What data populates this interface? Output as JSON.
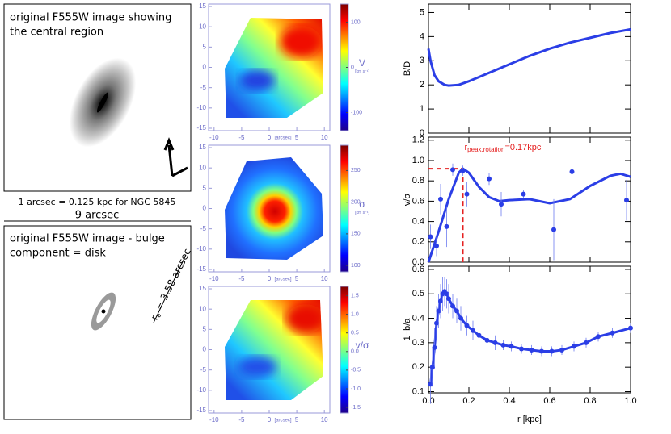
{
  "left_panel": {
    "top_box_lines": [
      "original F555W image showing",
      "the central region"
    ],
    "scale_text": "1 arcsec = 0.125 kpc for NGC 5845",
    "bar_label": "9 arcsec",
    "bottom_box_lines": [
      "original F555W image - bulge",
      "component = disk"
    ],
    "re_label": {
      "symbol": "r",
      "sub": "e",
      "text": " = 3.58 arcsec"
    }
  },
  "maps": {
    "xlim": [
      -11,
      11
    ],
    "ylim": [
      -15.6,
      15.6
    ],
    "xticks": [
      -10,
      -5,
      0,
      5,
      10
    ],
    "yticks": [
      -15,
      -10,
      -5,
      0,
      5,
      10,
      15
    ],
    "xlabel": "[arcsec]",
    "panels": [
      {
        "clabel": "V",
        "cunit": "[km s⁻¹]",
        "clim": [
          -140,
          140
        ],
        "cticks": [
          -100,
          0,
          100
        ]
      },
      {
        "clabel": "σ",
        "cunit": "[km s⁻¹]",
        "clim": [
          90,
          290
        ],
        "cticks": [
          100,
          150,
          200,
          250
        ]
      },
      {
        "clabel": "v/σ",
        "clim": [
          -1.65,
          1.75
        ],
        "cticks": [
          -1.5,
          {
            "value": -1,
            "label": "-1.0"
          },
          -0.5,
          {
            "value": 0,
            "label": "0.0"
          },
          0.5,
          {
            "value": 1,
            "label": "1.0"
          },
          1.5
        ]
      }
    ]
  },
  "chart_data": [
    {
      "type": "line",
      "ylabel": "B/D",
      "color": "#2b3ee6",
      "x": [
        0,
        0.01,
        0.02,
        0.03,
        0.05,
        0.08,
        0.1,
        0.15,
        0.2,
        0.3,
        0.4,
        0.5,
        0.6,
        0.7,
        0.8,
        0.9,
        1.0
      ],
      "values": [
        3.5,
        3.0,
        2.7,
        2.4,
        2.15,
        2.0,
        1.97,
        2.0,
        2.15,
        2.5,
        2.85,
        3.2,
        3.5,
        3.75,
        3.95,
        4.15,
        4.3
      ],
      "xlim": [
        0,
        1
      ],
      "ylim": [
        0,
        5.35
      ],
      "yticks": [
        0,
        1,
        2,
        3,
        4,
        5
      ]
    },
    {
      "type": "scatter",
      "ylabel": "v/σ",
      "color": "#2b3ee6",
      "x": [
        0.01,
        0.04,
        0.06,
        0.09,
        0.12,
        0.17,
        0.19,
        0.3,
        0.36,
        0.47,
        0.62,
        0.71,
        0.98
      ],
      "values": [
        0.25,
        0.16,
        0.62,
        0.35,
        0.91,
        0.9,
        0.67,
        0.82,
        0.57,
        0.67,
        0.32,
        0.89,
        0.61
      ],
      "errors": [
        0.12,
        0.1,
        0.15,
        0.2,
        0.06,
        0.05,
        0.12,
        0.06,
        0.12,
        0.04,
        0.3,
        0.26,
        0.2
      ],
      "fit": {
        "x": [
          0,
          0.05,
          0.1,
          0.15,
          0.17,
          0.2,
          0.25,
          0.3,
          0.35,
          0.4,
          0.5,
          0.6,
          0.7,
          0.8,
          0.9,
          0.95,
          1.0
        ],
        "values": [
          0,
          0.3,
          0.62,
          0.88,
          0.92,
          0.88,
          0.74,
          0.64,
          0.6,
          0.61,
          0.62,
          0.58,
          0.62,
          0.75,
          0.85,
          0.87,
          0.84
        ]
      },
      "peak": {
        "x": 0.17,
        "y": 0.92,
        "color": "#e52020"
      },
      "annotation": {
        "symbol": "r",
        "sub": "peak,rotation",
        "text": "=0.17kpc"
      },
      "xlim": [
        0,
        1
      ],
      "ylim": [
        0,
        1.23
      ],
      "yticks": [
        {
          "value": 0,
          "label": "0.0"
        },
        0.2,
        0.4,
        0.6,
        0.8,
        {
          "value": 1,
          "label": "1.0"
        },
        1.2
      ]
    },
    {
      "type": "line",
      "ylabel": "1−b/a",
      "color": "#2b3ee6",
      "markers": true,
      "x": [
        0.01,
        0.02,
        0.03,
        0.04,
        0.05,
        0.06,
        0.07,
        0.08,
        0.09,
        0.1,
        0.12,
        0.14,
        0.16,
        0.19,
        0.22,
        0.25,
        0.29,
        0.33,
        0.37,
        0.41,
        0.46,
        0.51,
        0.56,
        0.61,
        0.66,
        0.72,
        0.78,
        0.84,
        0.91,
        1.0
      ],
      "values": [
        0.13,
        0.2,
        0.28,
        0.38,
        0.43,
        0.47,
        0.5,
        0.51,
        0.5,
        0.48,
        0.45,
        0.43,
        0.4,
        0.37,
        0.35,
        0.33,
        0.31,
        0.3,
        0.29,
        0.285,
        0.275,
        0.27,
        0.265,
        0.265,
        0.27,
        0.285,
        0.3,
        0.325,
        0.34,
        0.36
      ],
      "errors": [
        0.08,
        0.08,
        0.08,
        0.07,
        0.07,
        0.07,
        0.07,
        0.06,
        0.06,
        0.06,
        0.05,
        0.05,
        0.05,
        0.04,
        0.04,
        0.03,
        0.03,
        0.03,
        0.02,
        0.02,
        0.02,
        0.02,
        0.02,
        0.02,
        0.02,
        0.02,
        0.02,
        0.02,
        0.02,
        0.02
      ],
      "xlim": [
        0,
        1
      ],
      "ylim": [
        0.095,
        0.613
      ],
      "yticks": [
        0.1,
        0.2,
        0.3,
        0.4,
        0.5,
        0.6
      ],
      "xticks": [
        {
          "value": 0,
          "label": "0.0"
        },
        0.2,
        0.4,
        0.6,
        0.8,
        {
          "value": 1,
          "label": "1.0"
        }
      ],
      "xlabel": "r [kpc]"
    }
  ]
}
